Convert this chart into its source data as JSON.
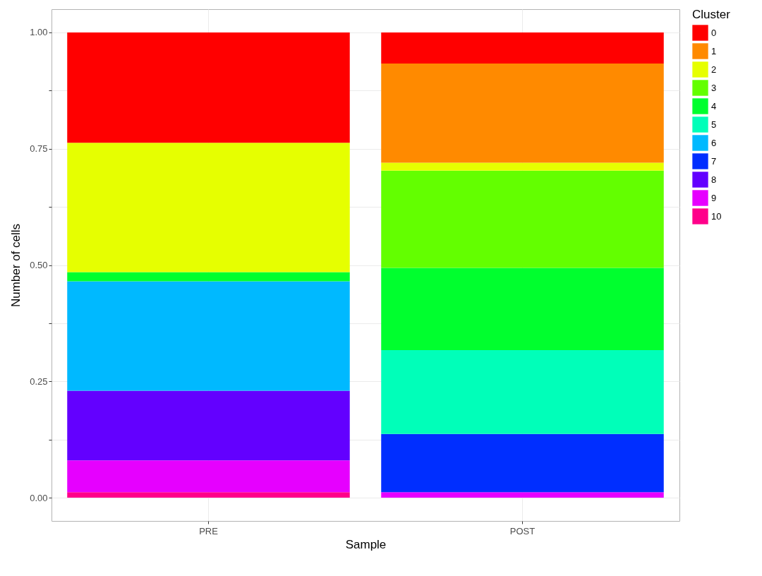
{
  "chart_data": {
    "type": "bar",
    "stacked": true,
    "xlabel": "Sample",
    "ylabel": "Number of cells",
    "legend_title": "Cluster",
    "legend": "right",
    "grid": true,
    "categories": [
      "PRE",
      "POST"
    ],
    "ylim": [
      -0.05,
      1.05
    ],
    "yticks": [
      {
        "value": 0,
        "label": "0.00"
      },
      {
        "value": 0.125,
        "label": null
      },
      {
        "value": 0.25,
        "label": "0.25"
      },
      {
        "value": 0.375,
        "label": null
      },
      {
        "value": 0.5,
        "label": "0.50"
      },
      {
        "value": 0.625,
        "label": null
      },
      {
        "value": 0.75,
        "label": "0.75"
      },
      {
        "value": 0.875,
        "label": null
      },
      {
        "value": 1,
        "label": "1.00"
      }
    ],
    "series": [
      {
        "name": "10",
        "color": "#ff008a",
        "values": [
          0.012,
          0
        ]
      },
      {
        "name": "9",
        "color": "#e600ff",
        "values": [
          0.068,
          0.012
        ]
      },
      {
        "name": "8",
        "color": "#6300ff",
        "values": [
          0.15,
          0
        ]
      },
      {
        "name": "7",
        "color": "#002eff",
        "values": [
          0,
          0.125
        ]
      },
      {
        "name": "6",
        "color": "#00b9ff",
        "values": [
          0.235,
          0
        ]
      },
      {
        "name": "5",
        "color": "#00ffb9",
        "values": [
          0,
          0.18
        ]
      },
      {
        "name": "4",
        "color": "#00ff2e",
        "values": [
          0.02,
          0.177
        ]
      },
      {
        "name": "3",
        "color": "#63ff00",
        "values": [
          0,
          0.209
        ]
      },
      {
        "name": "2",
        "color": "#e6ff00",
        "values": [
          0.278,
          0.017
        ]
      },
      {
        "name": "1",
        "color": "#ff8a00",
        "values": [
          0,
          0.213
        ]
      },
      {
        "name": "0",
        "color": "#ff0000",
        "values": [
          0.237,
          0.067
        ]
      }
    ]
  }
}
